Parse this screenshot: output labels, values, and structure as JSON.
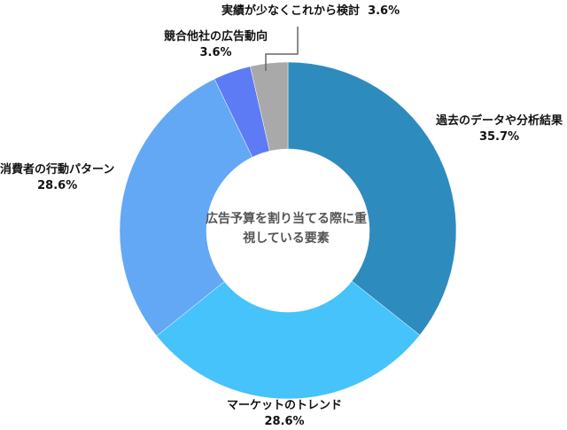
{
  "chart_data": {
    "type": "pie",
    "donut": true,
    "center_text": "広告予算を割り当てる際に重視している要素",
    "slices": [
      {
        "label": "過去のデータや分析結果",
        "value": 35.7,
        "value_label": "35.7%",
        "color": "#2E8BBE"
      },
      {
        "label": "マーケットのトレンド",
        "value": 28.6,
        "value_label": "28.6%",
        "color": "#45C3FA"
      },
      {
        "label": "消費者の行動パターン",
        "value": 28.6,
        "value_label": "28.6%",
        "color": "#62A8F5"
      },
      {
        "label": "競合他社の広告動向",
        "value": 3.6,
        "value_label": "3.6%",
        "color": "#5D7BF5"
      },
      {
        "label": "実績が少なくこれから検討",
        "value": 3.6,
        "value_label": "3.6%",
        "color": "#A9A9A9"
      }
    ]
  }
}
